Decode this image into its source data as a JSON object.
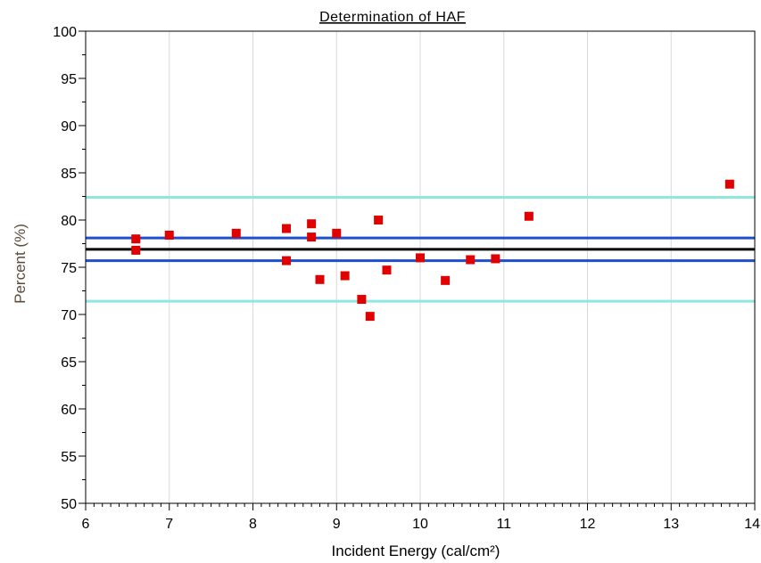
{
  "chart_data": {
    "type": "scatter",
    "title": "Determination of HAF",
    "xlabel": "Incident Energy (cal/cm²)",
    "ylabel": "Percent (%)",
    "xlim": [
      6,
      14
    ],
    "ylim": [
      50,
      100
    ],
    "x_ticks": [
      "6",
      "7",
      "8",
      "9",
      "10",
      "11",
      "12",
      "13",
      "14"
    ],
    "y_ticks": [
      "50",
      "55",
      "60",
      "65",
      "70",
      "75",
      "80",
      "85",
      "90",
      "95",
      "100"
    ],
    "grid": "vertical",
    "series": [
      {
        "marker": "square",
        "color": "#e00000",
        "points": [
          {
            "x": 6.6,
            "y": 78.0
          },
          {
            "x": 6.6,
            "y": 76.8
          },
          {
            "x": 7.0,
            "y": 78.4
          },
          {
            "x": 7.8,
            "y": 78.6
          },
          {
            "x": 8.4,
            "y": 79.1
          },
          {
            "x": 8.4,
            "y": 75.7
          },
          {
            "x": 8.7,
            "y": 79.6
          },
          {
            "x": 8.7,
            "y": 78.2
          },
          {
            "x": 8.8,
            "y": 73.7
          },
          {
            "x": 9.0,
            "y": 78.6
          },
          {
            "x": 9.1,
            "y": 74.1
          },
          {
            "x": 9.3,
            "y": 71.6
          },
          {
            "x": 9.4,
            "y": 69.8
          },
          {
            "x": 9.5,
            "y": 80.0
          },
          {
            "x": 9.6,
            "y": 74.7
          },
          {
            "x": 10.0,
            "y": 76.0
          },
          {
            "x": 10.3,
            "y": 73.6
          },
          {
            "x": 10.6,
            "y": 75.8
          },
          {
            "x": 10.9,
            "y": 75.9
          },
          {
            "x": 11.3,
            "y": 80.4
          },
          {
            "x": 13.7,
            "y": 83.8
          }
        ]
      }
    ],
    "reference_lines": [
      {
        "y": 82.4,
        "color": "#8fe8e0",
        "width": 3
      },
      {
        "y": 78.1,
        "color": "#1f4fcc",
        "width": 3
      },
      {
        "y": 76.9,
        "color": "#000000",
        "width": 3
      },
      {
        "y": 75.7,
        "color": "#1f4fcc",
        "width": 3
      },
      {
        "y": 71.4,
        "color": "#8fe8e0",
        "width": 3
      }
    ]
  }
}
